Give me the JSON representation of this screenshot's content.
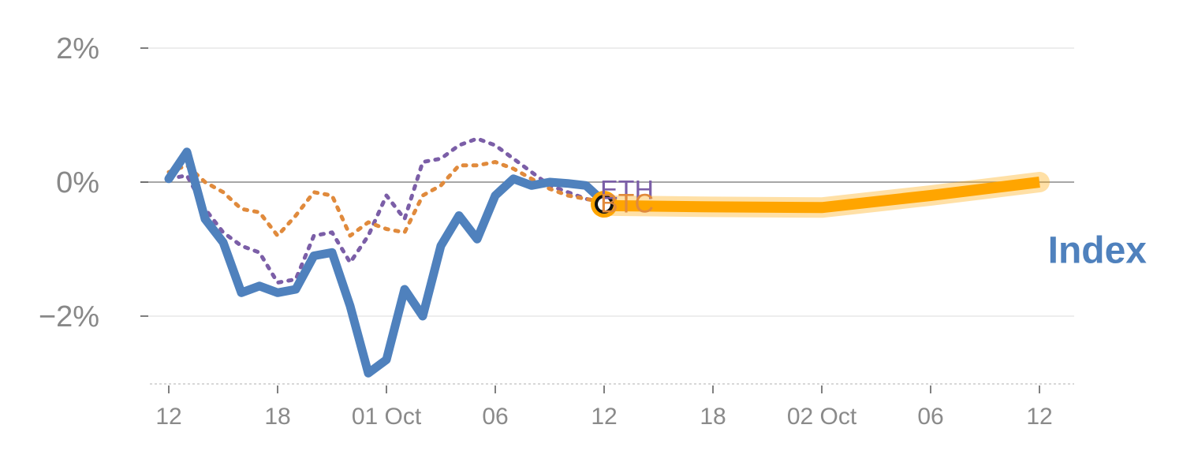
{
  "chart_data": {
    "type": "line",
    "title": "",
    "xlabel": "",
    "ylabel": "",
    "ylim": [
      -3.0,
      2.0
    ],
    "y_ticks": [
      {
        "value": 2,
        "label": "2%"
      },
      {
        "value": 0,
        "label": "0%"
      },
      {
        "value": -2,
        "label": "−2%"
      }
    ],
    "x_ticks": [
      {
        "x": 0,
        "label": "12"
      },
      {
        "x": 6,
        "label": "18"
      },
      {
        "x": 12,
        "label": "01 Oct"
      },
      {
        "x": 18,
        "label": "06"
      },
      {
        "x": 24,
        "label": "12"
      },
      {
        "x": 30,
        "label": "18"
      },
      {
        "x": 36,
        "label": "02 Oct"
      },
      {
        "x": 42,
        "label": "06"
      },
      {
        "x": 48,
        "label": "12"
      }
    ],
    "xlim": [
      -1,
      49.2
    ],
    "series": [
      {
        "name": "ETH",
        "label": "ETH",
        "color": "#7b5ea7",
        "style": "dotted",
        "x": [
          0,
          1,
          2,
          3,
          4,
          5,
          6,
          7,
          8,
          9,
          10,
          11,
          12,
          13,
          14,
          15,
          16,
          17,
          18,
          19,
          20,
          21,
          22,
          23,
          24
        ],
        "values": [
          0.05,
          0.1,
          -0.4,
          -0.75,
          -0.95,
          -1.05,
          -1.5,
          -1.45,
          -0.8,
          -0.75,
          -1.2,
          -0.8,
          -0.2,
          -0.55,
          0.3,
          0.35,
          0.55,
          0.65,
          0.55,
          0.35,
          0.15,
          -0.05,
          -0.15,
          -0.25,
          -0.3
        ]
      },
      {
        "name": "BTC",
        "label": "BTC",
        "color": "#e08a3c",
        "style": "dotted",
        "x": [
          0,
          1,
          2,
          3,
          4,
          5,
          6,
          7,
          8,
          9,
          10,
          11,
          12,
          13,
          14,
          15,
          16,
          17,
          18,
          19,
          20,
          21,
          22,
          23,
          24
        ],
        "values": [
          0.15,
          0.25,
          0.0,
          -0.15,
          -0.4,
          -0.45,
          -0.8,
          -0.5,
          -0.15,
          -0.2,
          -0.8,
          -0.6,
          -0.7,
          -0.75,
          -0.2,
          -0.05,
          0.25,
          0.25,
          0.3,
          0.2,
          0.05,
          -0.1,
          -0.2,
          -0.25,
          -0.3
        ]
      },
      {
        "name": "Index",
        "label": "Index",
        "color": "#4f81bd",
        "style": "solid",
        "x": [
          0,
          1,
          2,
          3,
          4,
          5,
          6,
          7,
          8,
          9,
          10,
          11,
          12,
          13,
          14,
          15,
          16,
          17,
          18,
          19,
          20,
          21,
          22,
          23,
          24
        ],
        "values": [
          0.05,
          0.45,
          -0.55,
          -0.9,
          -1.65,
          -1.55,
          -1.65,
          -1.6,
          -1.1,
          -1.05,
          -1.85,
          -2.85,
          -2.65,
          -1.6,
          -2.0,
          -0.95,
          -0.5,
          -0.85,
          -0.2,
          0.05,
          -0.05,
          0.0,
          -0.02,
          -0.05,
          -0.3
        ]
      },
      {
        "name": "Index projection",
        "label": "",
        "color": "#ffa500",
        "style": "band",
        "x": [
          24,
          30,
          36,
          42,
          48
        ],
        "values": [
          -0.35,
          -0.37,
          -0.38,
          -0.2,
          0.0
        ]
      }
    ],
    "marker": {
      "x": 24,
      "y": -0.33,
      "ring_color": "#ffa500"
    },
    "annotations": [
      {
        "text": "ETH",
        "x": 24,
        "y": -0.3,
        "color": "#7b5ea7"
      },
      {
        "text": "BTC",
        "x": 24,
        "y": -0.3,
        "color": "#e08a3c"
      },
      {
        "text": "Index",
        "x": 48,
        "y": -0.3,
        "color": "#4f81bd"
      }
    ],
    "grid": true,
    "legend": "none"
  }
}
